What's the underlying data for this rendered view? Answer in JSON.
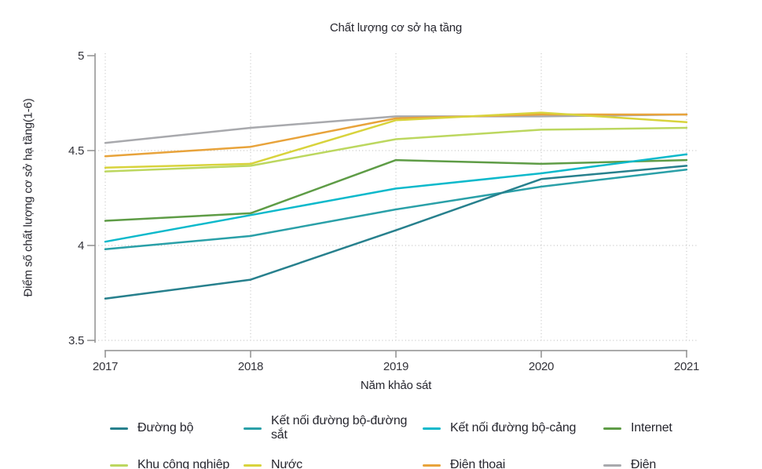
{
  "chart_data": {
    "type": "line",
    "title": "Chất lượng cơ sở hạ tầng",
    "xlabel": "Năm khảo sát",
    "ylabel": "Điểm số chất lượng cơ sở hạ tầng(1-6)",
    "x_categories": [
      "2017",
      "2018",
      "2019",
      "2020",
      "2021"
    ],
    "y_ticks": [
      "5",
      "4.5",
      "4",
      "3.5"
    ],
    "ylim": [
      3.5,
      5
    ],
    "grid_lines_y": [
      4.5,
      4,
      3.5
    ],
    "grid_style": "dotted",
    "legend_position": "bottom",
    "series": [
      {
        "key": "duong-bo",
        "name": "Đường bộ",
        "color": "#27808d",
        "values": [
          3.72,
          3.82,
          4.08,
          4.35,
          4.42
        ]
      },
      {
        "key": "ket-noi-duong-bo-duong-sat",
        "name": "Kết nối đường bộ-đường sắt",
        "color": "#2aa0a8",
        "values": [
          3.98,
          4.05,
          4.19,
          4.31,
          4.4
        ]
      },
      {
        "key": "ket-noi-duong-bo-cang",
        "name": "Kết nối đường bộ-cảng",
        "color": "#0db9cb",
        "values": [
          4.02,
          4.16,
          4.3,
          4.38,
          4.48
        ]
      },
      {
        "key": "internet",
        "name": "Internet",
        "color": "#5e9c46",
        "values": [
          4.13,
          4.17,
          4.45,
          4.43,
          4.45
        ]
      },
      {
        "key": "khu-cong-nghiep",
        "name": "Khu công nghiệp",
        "color": "#bcd75f",
        "values": [
          4.39,
          4.42,
          4.56,
          4.61,
          4.62
        ]
      },
      {
        "key": "nuoc",
        "name": "Nước",
        "color": "#d8d33c",
        "values": [
          4.41,
          4.43,
          4.66,
          4.7,
          4.65
        ]
      },
      {
        "key": "dien-thoai",
        "name": "Điện thoại",
        "color": "#e8a33b",
        "values": [
          4.47,
          4.52,
          4.67,
          4.69,
          4.69
        ]
      },
      {
        "key": "dien",
        "name": "Điện",
        "color": "#a8a9ad",
        "values": [
          4.54,
          4.62,
          4.68,
          4.68,
          4.69
        ]
      }
    ]
  }
}
